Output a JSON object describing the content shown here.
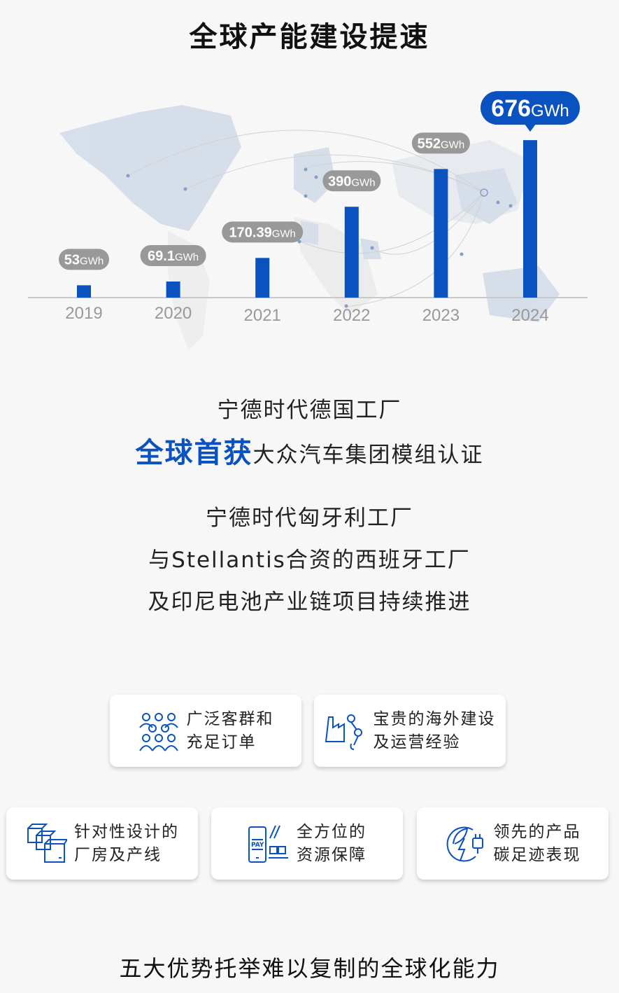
{
  "title": "全球产能建设提速",
  "chart_data": {
    "type": "bar",
    "categories": [
      "2019",
      "2020",
      "2021",
      "2022",
      "2023",
      "2024"
    ],
    "values": [
      53,
      69.1,
      170.39,
      390,
      552,
      676
    ],
    "data_labels": [
      "53",
      "69.1",
      "170.39",
      "390",
      "552",
      "676"
    ],
    "unit": "GWh",
    "highlight_index": 5,
    "ylim": [
      0,
      700
    ],
    "grid": false,
    "colors": {
      "bar": "#0a52c0",
      "label_bg": "#999999",
      "highlight_bg": "#0a52c0",
      "axis": "#c8c8c8",
      "tick": "#999999"
    }
  },
  "factory": {
    "line1": "宁德时代德国工厂",
    "highlight": "全球首获",
    "line2_rest": "大众汽车集团模组认证"
  },
  "projects": [
    "宁德时代匈牙利工厂",
    "与Stellantis合资的西班牙工厂",
    "及印尼电池产业链项目持续推进"
  ],
  "advantages": [
    {
      "icon": "people-group-icon",
      "line1": "广泛客群和",
      "line2": "充足订单"
    },
    {
      "icon": "factory-robot-arm-icon",
      "line1": "宝贵的海外建设",
      "line2": "及运营经验"
    },
    {
      "icon": "boxes-icon",
      "line1": "针对性设计的",
      "line2": "厂房及产线"
    },
    {
      "icon": "pay-resources-icon",
      "line1": "全方位的",
      "line2": "资源保障"
    },
    {
      "icon": "green-energy-plug-icon",
      "line1": "领先的产品",
      "line2": "碳足迹表现"
    }
  ],
  "summary": "五大优势托举难以复制的全球化能力"
}
